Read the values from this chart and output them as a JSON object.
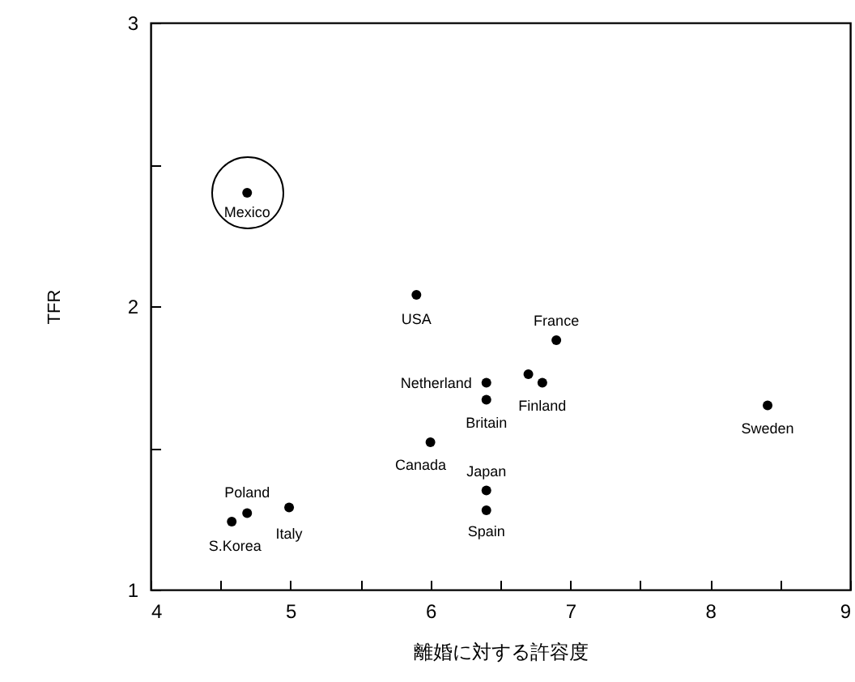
{
  "chart_data": {
    "type": "scatter",
    "xlabel": "離婚に対する許容度",
    "ylabel": "TFR",
    "x": [
      4.69,
      5.9,
      6.9,
      6.7,
      6.8,
      6.4,
      6.4,
      8.41,
      6.0,
      6.4,
      6.4,
      4.69,
      4.58,
      4.99
    ],
    "series": [
      {
        "color": "#000000",
        "values": [
          2.4,
          2.04,
          1.88,
          1.76,
          1.73,
          1.73,
          1.67,
          1.65,
          1.52,
          1.35,
          1.28,
          1.27,
          1.24,
          1.29
        ]
      }
    ],
    "xlim": [
      4,
      9
    ],
    "ylim": [
      1,
      3
    ],
    "xticks": [
      4,
      {
        "value": 4.5,
        "label": null
      },
      5,
      {
        "value": 5.5,
        "label": null
      },
      6,
      {
        "value": 6.5,
        "label": null
      },
      7,
      {
        "value": 7.5,
        "label": null
      },
      8,
      {
        "value": 8.5,
        "label": null
      },
      9
    ],
    "yticks": [
      1,
      {
        "value": 1.5,
        "label": null
      },
      2,
      {
        "value": 2.5,
        "label": null
      },
      3
    ],
    "marker": "circle",
    "grid": false,
    "annotations": [
      {
        "text": "Mexico",
        "x": 4.69,
        "y": 2.4
      },
      {
        "text": "USA",
        "x": 5.9,
        "y": 2.04
      },
      {
        "text": "France",
        "x": 6.9,
        "y": 1.88
      },
      {
        "text": "Netherland",
        "x": 6.4,
        "y": 1.73
      },
      {
        "text": "Finland",
        "x": 6.8,
        "y": 1.73
      },
      {
        "text": "Britain",
        "x": 6.4,
        "y": 1.67
      },
      {
        "text": "Sweden",
        "x": 8.41,
        "y": 1.65
      },
      {
        "text": "Canada",
        "x": 6.0,
        "y": 1.52
      },
      {
        "text": "Japan",
        "x": 6.4,
        "y": 1.35
      },
      {
        "text": "Spain",
        "x": 6.4,
        "y": 1.28
      },
      {
        "text": "Poland",
        "x": 4.69,
        "y": 1.27
      },
      {
        "text": "S.Korea",
        "x": 4.58,
        "y": 1.24
      },
      {
        "text": "Italy",
        "x": 4.99,
        "y": 1.29
      }
    ]
  }
}
